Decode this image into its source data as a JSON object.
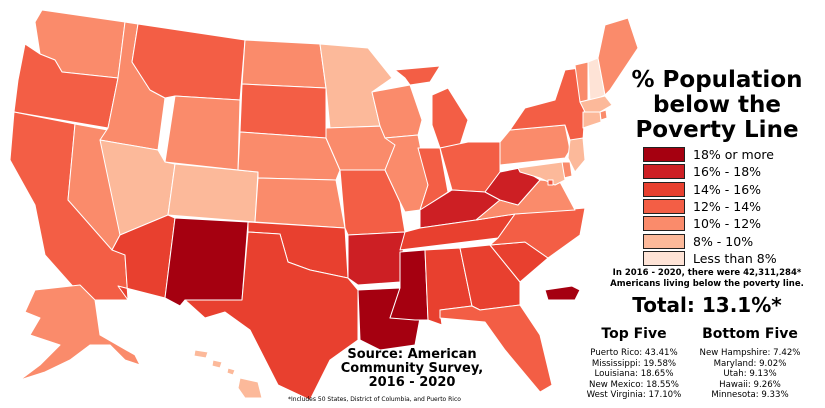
{
  "title_lines": [
    "% Population",
    "below the",
    "Poverty Line"
  ],
  "legend": [
    {
      "label": "18% or more",
      "color": "#a50010"
    },
    {
      "label": "16% - 18%",
      "color": "#cd1f24"
    },
    {
      "label": "14% - 16%",
      "color": "#e8402f"
    },
    {
      "label": "12% - 14%",
      "color": "#f35e45"
    },
    {
      "label": "10% - 12%",
      "color": "#fa8b6b"
    },
    {
      "label": "8% - 10%",
      "color": "#fcb99a"
    },
    {
      "label": "Less than 8%",
      "color": "#fee3d6"
    }
  ],
  "stat_note": "In 2016 - 2020, there were 42,311,284* Americans living below the poverty line.",
  "total": "Total: 13.1%*",
  "top_five": {
    "heading": "Top Five",
    "items": [
      "Puerto Rico: 43.41%",
      "Mississippi: 19.58%",
      "Louisiana: 18.65%",
      "New Mexico: 18.55%",
      "West Virginia: 17.10%"
    ]
  },
  "bottom_five": {
    "heading": "Bottom Five",
    "items": [
      "New Hampshire: 7.42%",
      "Maryland: 9.02%",
      "Utah: 9.13%",
      "Hawaii: 9.26%",
      "Minnesota: 9.33%"
    ]
  },
  "source_lines": [
    "Source: American",
    "Community Survey,",
    "2016 - 2020"
  ],
  "footnote": "*Includes 50 States, District of Columbia, and Puerto Rico",
  "states": [
    {
      "name": "Washington",
      "bin": 4
    },
    {
      "name": "Oregon",
      "bin": 3
    },
    {
      "name": "California",
      "bin": 3
    },
    {
      "name": "Nevada",
      "bin": 4
    },
    {
      "name": "Idaho",
      "bin": 4
    },
    {
      "name": "Montana",
      "bin": 3
    },
    {
      "name": "Wyoming",
      "bin": 4
    },
    {
      "name": "Utah",
      "bin": 5
    },
    {
      "name": "Colorado",
      "bin": 5
    },
    {
      "name": "Arizona",
      "bin": 2
    },
    {
      "name": "New Mexico",
      "bin": 0
    },
    {
      "name": "North Dakota",
      "bin": 4
    },
    {
      "name": "South Dakota",
      "bin": 3
    },
    {
      "name": "Nebraska",
      "bin": 4
    },
    {
      "name": "Kansas",
      "bin": 4
    },
    {
      "name": "Oklahoma",
      "bin": 2
    },
    {
      "name": "Texas",
      "bin": 2
    },
    {
      "name": "Minnesota",
      "bin": 5
    },
    {
      "name": "Iowa",
      "bin": 4
    },
    {
      "name": "Missouri",
      "bin": 3
    },
    {
      "name": "Arkansas",
      "bin": 1
    },
    {
      "name": "Louisiana",
      "bin": 0
    },
    {
      "name": "Wisconsin",
      "bin": 4
    },
    {
      "name": "Illinois",
      "bin": 4
    },
    {
      "name": "Michigan",
      "bin": 3
    },
    {
      "name": "Indiana",
      "bin": 3
    },
    {
      "name": "Ohio",
      "bin": 3
    },
    {
      "name": "Kentucky",
      "bin": 1
    },
    {
      "name": "Tennessee",
      "bin": 2
    },
    {
      "name": "Mississippi",
      "bin": 0
    },
    {
      "name": "Alabama",
      "bin": 2
    },
    {
      "name": "Georgia",
      "bin": 2
    },
    {
      "name": "Florida",
      "bin": 3
    },
    {
      "name": "South Carolina",
      "bin": 2
    },
    {
      "name": "North Carolina",
      "bin": 3
    },
    {
      "name": "Virginia",
      "bin": 4
    },
    {
      "name": "West Virginia",
      "bin": 1
    },
    {
      "name": "Pennsylvania",
      "bin": 4
    },
    {
      "name": "New York",
      "bin": 3
    },
    {
      "name": "Vermont",
      "bin": 4
    },
    {
      "name": "New Hampshire",
      "bin": 6
    },
    {
      "name": "Maine",
      "bin": 4
    },
    {
      "name": "Massachusetts",
      "bin": 5
    },
    {
      "name": "Rhode Island",
      "bin": 4
    },
    {
      "name": "Connecticut",
      "bin": 5
    },
    {
      "name": "New Jersey",
      "bin": 5
    },
    {
      "name": "Delaware",
      "bin": 4
    },
    {
      "name": "Maryland",
      "bin": 5
    },
    {
      "name": "District of Columbia",
      "bin": 3
    },
    {
      "name": "Alaska",
      "bin": 4
    },
    {
      "name": "Hawaii",
      "bin": 5
    },
    {
      "name": "Puerto Rico",
      "bin": 0
    }
  ]
}
